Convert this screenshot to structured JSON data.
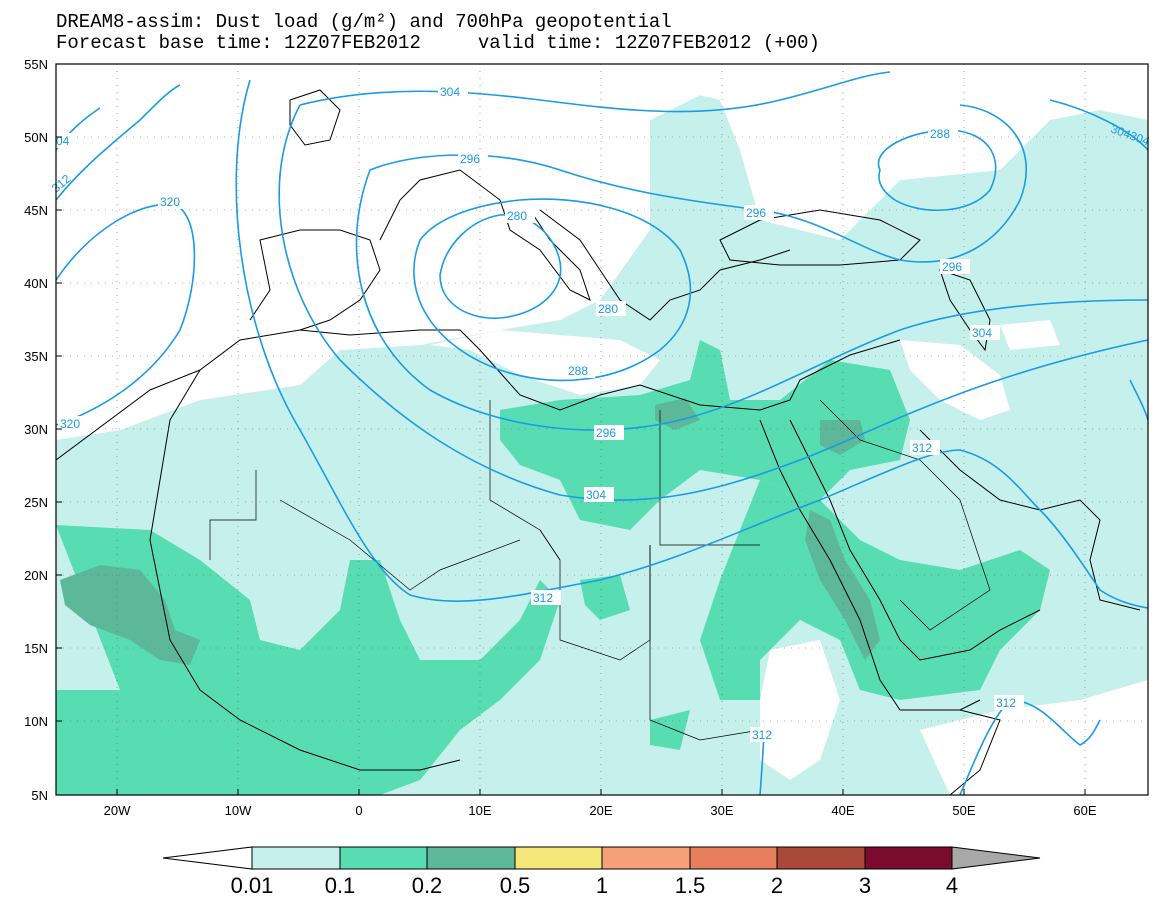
{
  "title": {
    "line1": "DREAM8-assim: Dust load (g/m²) and 700hPa geopotential",
    "line2": "Forecast base time: 12Z07FEB2012     valid time: 12Z07FEB2012 (+00)"
  },
  "map": {
    "region": "North Africa / Mediterranean / Middle East",
    "lon_range": [
      -25,
      65
    ],
    "lat_range": [
      5,
      55
    ],
    "lat_labels": [
      "55N",
      "50N",
      "45N",
      "40N",
      "35N",
      "30N",
      "25N",
      "20N",
      "15N",
      "10N",
      "5N"
    ],
    "lon_labels": [
      "20W",
      "10W",
      "0",
      "10E",
      "20E",
      "30E",
      "40E",
      "50E",
      "60E"
    ],
    "geopotential_contour_labels": [
      "304",
      "296",
      "288",
      "280",
      "296",
      "296",
      "304",
      "304",
      "312",
      "312",
      "312",
      "312",
      "320",
      "320",
      "304",
      "288",
      "296",
      "304304"
    ],
    "colors": {
      "contour": "#1a9be6",
      "level_0_01": "#c6f0ec",
      "level_0_1": "#58dcb2",
      "level_0_2": "#5cb898",
      "level_0_5": "#f5e67a",
      "level_1": "#f5a077",
      "level_1_5": "#e87f5c",
      "level_2": "#a84838",
      "level_3": "#7a0b2e",
      "level_4": "#8a6fa0",
      "over": "#a8a8a8"
    }
  },
  "colorbar": {
    "labels": [
      "0.01",
      "0.1",
      "0.2",
      "0.5",
      "1",
      "1.5",
      "2",
      "3",
      "4"
    ],
    "colors": [
      "#c6f0ec",
      "#58dcb2",
      "#5cb898",
      "#f5e67a",
      "#f5a077",
      "#e87f5c",
      "#a84838",
      "#7a0b2e",
      "#8a6fa0"
    ]
  }
}
